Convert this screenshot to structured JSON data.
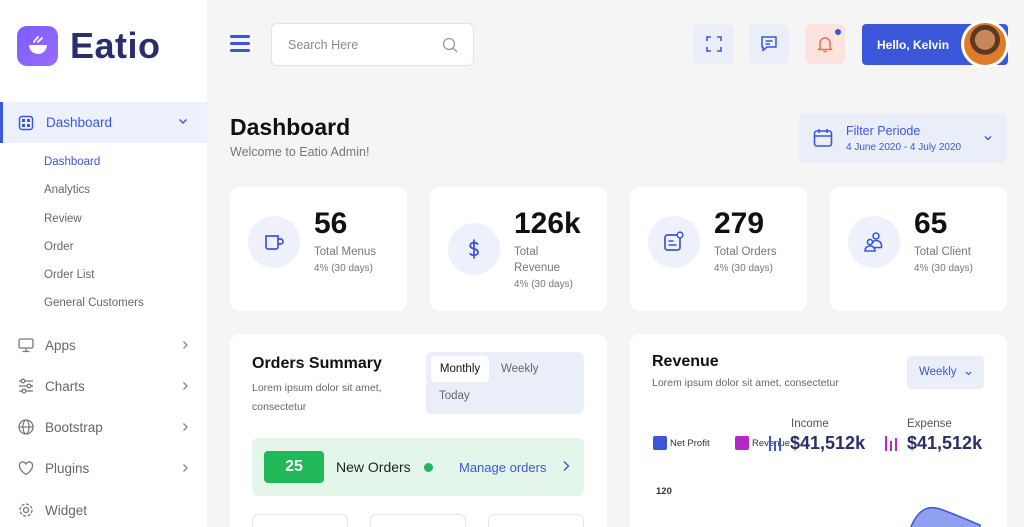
{
  "brand": {
    "name": "Eatio"
  },
  "sidebar": {
    "active_section": "Dashboard",
    "sub_items": [
      "Dashboard",
      "Analytics",
      "Review",
      "Order",
      "Order List",
      "General Customers"
    ],
    "items": [
      {
        "label": "Apps",
        "icon": "monitor-icon"
      },
      {
        "label": "Charts",
        "icon": "sliders-icon"
      },
      {
        "label": "Bootstrap",
        "icon": "globe-icon"
      },
      {
        "label": "Plugins",
        "icon": "heart-icon"
      },
      {
        "label": "Widget",
        "icon": "gear-icon"
      }
    ]
  },
  "topbar": {
    "search_placeholder": "Search Here",
    "greeting": "Hello, Kelvin"
  },
  "header": {
    "title": "Dashboard",
    "subtitle": "Welcome to Eatio Admin!",
    "filter_label": "Filter Periode",
    "filter_range": "4 June 2020 - 4 July 2020"
  },
  "stats": [
    {
      "value": "56",
      "label": "Total Menus",
      "change": "4% (30 days)",
      "icon": "cup-icon"
    },
    {
      "value": "126k",
      "label_line1": "Total",
      "label_line2": "Revenue",
      "change": "4% (30 days)",
      "icon": "dollar-icon"
    },
    {
      "value": "279",
      "label": "Total Orders",
      "change": "4% (30 days)",
      "icon": "orders-icon"
    },
    {
      "value": "65",
      "label": "Total Client",
      "change": "4% (30 days)",
      "icon": "clients-icon"
    }
  ],
  "orders_summary": {
    "title": "Orders Summary",
    "description": "Lorem ipsum dolor sit amet, consectetur",
    "tabs": [
      "Monthly",
      "Weekly",
      "Today"
    ],
    "new_orders_count": "25",
    "new_orders_label": "New Orders",
    "manage_link": "Manage orders"
  },
  "revenue": {
    "title": "Revenue",
    "description": "Lorem ipsum dolor sit amet, consectetur",
    "period": "Weekly",
    "legend": [
      {
        "label": "Net Profit",
        "color": "#3b57d9"
      },
      {
        "label": "Revenue",
        "color": "#b827c9"
      }
    ],
    "income_label": "Income",
    "income_value": "$41,512k",
    "expense_label": "Expense",
    "expense_value": "$41,512k",
    "axis_tick": "120"
  },
  "colors": {
    "primary": "#3b57d9",
    "success": "#21b85a",
    "notification_bg": "#fde3de"
  }
}
